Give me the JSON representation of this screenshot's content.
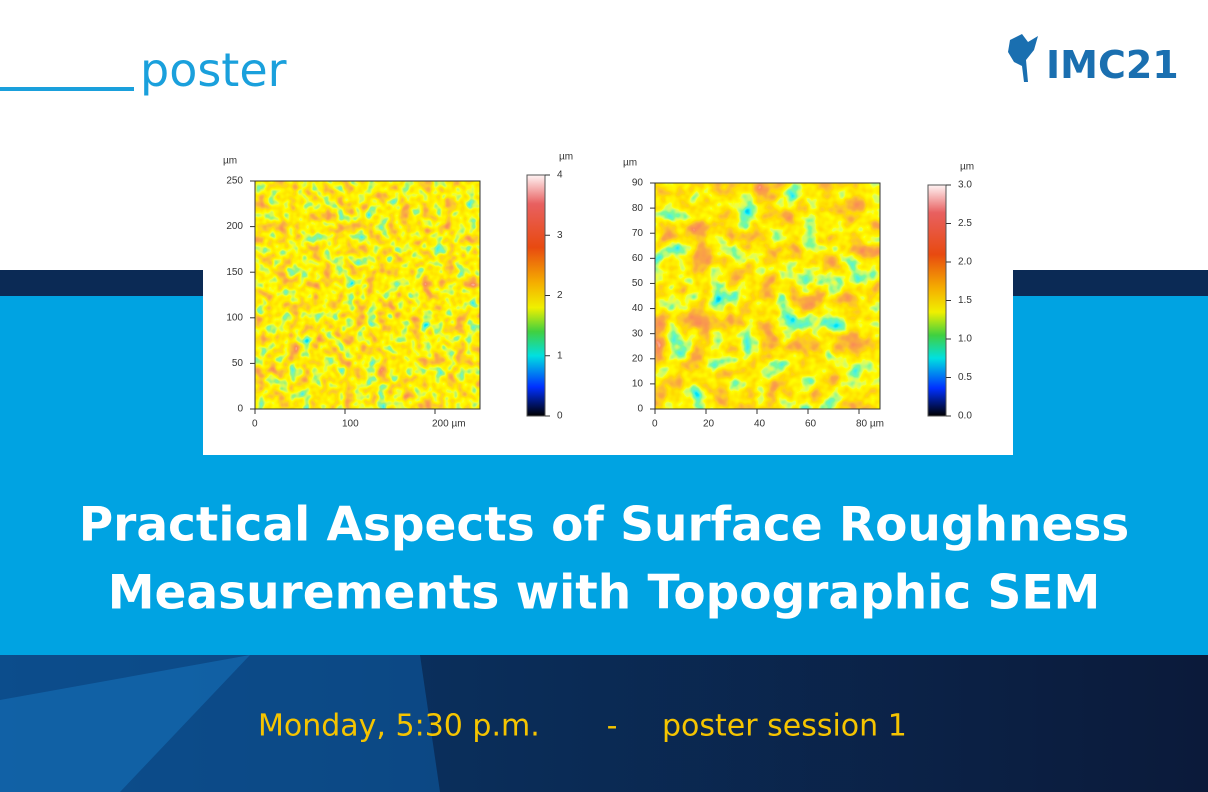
{
  "header": {
    "label": "poster",
    "logo": "IMC21"
  },
  "figures": [
    {
      "y_unit": "µm",
      "y_ticks": [
        "250",
        "200",
        "150",
        "100",
        "50",
        "0"
      ],
      "x_ticks": [
        "0",
        "100",
        "200 µm"
      ],
      "colorbar_unit": "µm",
      "colorbar_ticks": [
        "4",
        "3",
        "2",
        "1",
        "0"
      ]
    },
    {
      "y_unit": "µm",
      "y_ticks": [
        "90",
        "80",
        "70",
        "60",
        "50",
        "40",
        "30",
        "20",
        "10",
        "0"
      ],
      "x_ticks": [
        "0",
        "20",
        "40",
        "60",
        "80 µm"
      ],
      "colorbar_unit": "µm",
      "colorbar_ticks": [
        "3.0",
        "2.5",
        "2.0",
        "1.5",
        "1.0",
        "0.5",
        "0.0"
      ]
    }
  ],
  "title": [
    "Practical Aspects of Surface Roughness",
    "Measurements with Topographic SEM"
  ],
  "session": {
    "day_time": "Monday, 5:30 p.m.",
    "separator": "-",
    "name": "poster session 1"
  }
}
